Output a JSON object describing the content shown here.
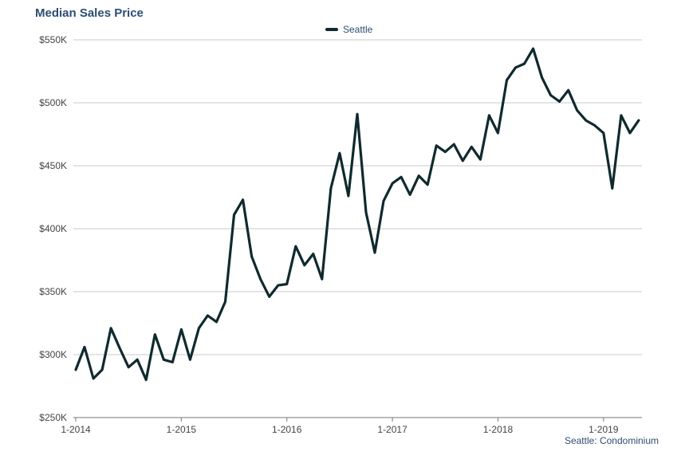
{
  "chart_data": {
    "type": "line",
    "title": "Median Sales Price",
    "xlabel": "",
    "ylabel": "",
    "ylim": [
      250000,
      550000
    ],
    "yticks": [
      250000,
      300000,
      350000,
      400000,
      450000,
      500000,
      550000
    ],
    "ytick_labels": [
      "$250K",
      "$300K",
      "$350K",
      "$400K",
      "$450K",
      "$500K",
      "$550K"
    ],
    "xtick_labels": [
      "1-2014",
      "1-2015",
      "1-2016",
      "1-2017",
      "1-2018",
      "1-2019"
    ],
    "grid": true,
    "legend_placement": "top-center",
    "colors": {
      "line": "#0f2a2e",
      "title": "#2d4d72",
      "grid": "#c8c8c8"
    },
    "series": [
      {
        "name": "Seattle",
        "start": "2014-01",
        "values": [
          288000,
          306000,
          281000,
          288000,
          321000,
          305000,
          290000,
          296000,
          280000,
          316000,
          296000,
          294000,
          320000,
          296000,
          321000,
          331000,
          326000,
          342000,
          411000,
          423000,
          378000,
          360000,
          346000,
          355000,
          356000,
          386000,
          371000,
          380000,
          360000,
          432000,
          460000,
          426000,
          491000,
          413000,
          381000,
          422000,
          436000,
          441000,
          427000,
          442000,
          435000,
          466000,
          461000,
          467000,
          454000,
          465000,
          455000,
          490000,
          476000,
          518000,
          528000,
          531000,
          543000,
          520000,
          506000,
          501000,
          510000,
          494000,
          486000,
          482000,
          476000,
          432000,
          490000,
          476000,
          486000
        ]
      }
    ]
  },
  "source_note": "Seattle: Condominium"
}
